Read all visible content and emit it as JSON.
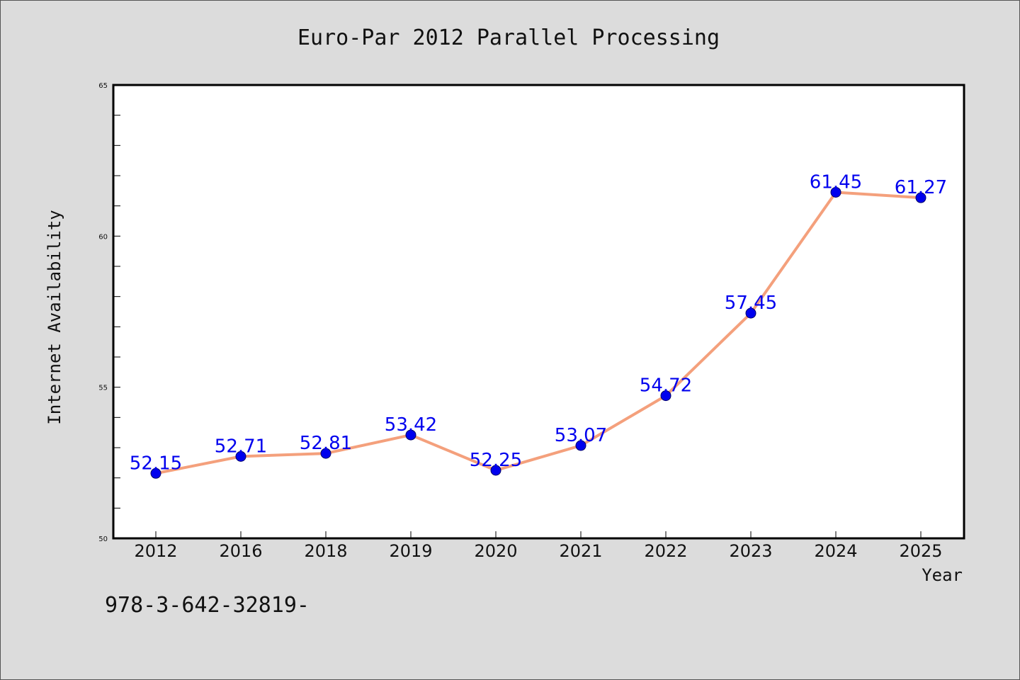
{
  "chart_data": {
    "type": "line",
    "title": "Euro-Par 2012 Parallel Processing",
    "xlabel": "Year",
    "ylabel": "Internet Availability",
    "categories": [
      "2012",
      "2016",
      "2018",
      "2019",
      "2020",
      "2021",
      "2022",
      "2023",
      "2024",
      "2025"
    ],
    "series": [
      {
        "values": [
          52.15,
          52.71,
          52.81,
          53.42,
          52.25,
          53.07,
          54.72,
          57.45,
          61.45,
          61.27
        ],
        "data_labels": [
          "52.15",
          "52.71",
          "52.81",
          "53.42",
          "52.25",
          "53.07",
          "54.72",
          "57.45",
          "61.45",
          "61.27"
        ],
        "line_color": "#f4a07c",
        "marker_color": "#0000ee",
        "label_color": "#0000ee"
      }
    ],
    "ylim": [
      50,
      65
    ],
    "yticks": [
      "50",
      "55",
      "60",
      "65"
    ],
    "grid": false,
    "legend": "none"
  },
  "footer": {
    "text": "978-3-642-32819-"
  }
}
